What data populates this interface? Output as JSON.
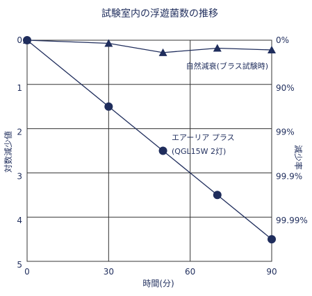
{
  "chart_data": {
    "type": "line",
    "title": "試験室内の浮遊菌数の推移",
    "xlabel": "時間(分)",
    "ylabel_left": "対数減少値",
    "ylabel_right": "減少率",
    "xlim": [
      0,
      90
    ],
    "ylim": [
      0,
      5
    ],
    "y_inverted": true,
    "grid": true,
    "x_ticks": [
      0,
      30,
      60,
      90
    ],
    "y_ticks": [
      0,
      1,
      2,
      3,
      4,
      5
    ],
    "right_ticks": [
      {
        "label": "0%",
        "y": 0
      },
      {
        "label": "90%",
        "y": 1
      },
      {
        "label": "99%",
        "y": 2
      },
      {
        "label": "99.9%",
        "y": 3
      },
      {
        "label": "99.99%",
        "y": 4
      }
    ],
    "series": [
      {
        "name": "自然減衰(ブラス試験時)",
        "marker": "triangle",
        "color": "#1f2d5c",
        "points": [
          [
            0,
            0
          ],
          [
            30,
            0.07
          ],
          [
            50,
            0.28
          ],
          [
            70,
            0.18
          ],
          [
            90,
            0.22
          ]
        ]
      },
      {
        "name": "エアーリア プラス (QGL15W 2灯)",
        "name_line1": "エアーリア プラス",
        "name_line2": "(QGL15W 2灯)",
        "marker": "circle",
        "color": "#1f2d5c",
        "points": [
          [
            0,
            0
          ],
          [
            30,
            1.5
          ],
          [
            50,
            2.5
          ],
          [
            70,
            3.5
          ],
          [
            90,
            4.5
          ]
        ]
      }
    ],
    "annotations": [
      {
        "series_index": 0,
        "text": "自然減衰(ブラス試験時)"
      },
      {
        "series_index": 1,
        "text": "エアーリア プラス"
      },
      {
        "series_index": 1,
        "text": "(QGL15W 2灯)"
      }
    ]
  }
}
